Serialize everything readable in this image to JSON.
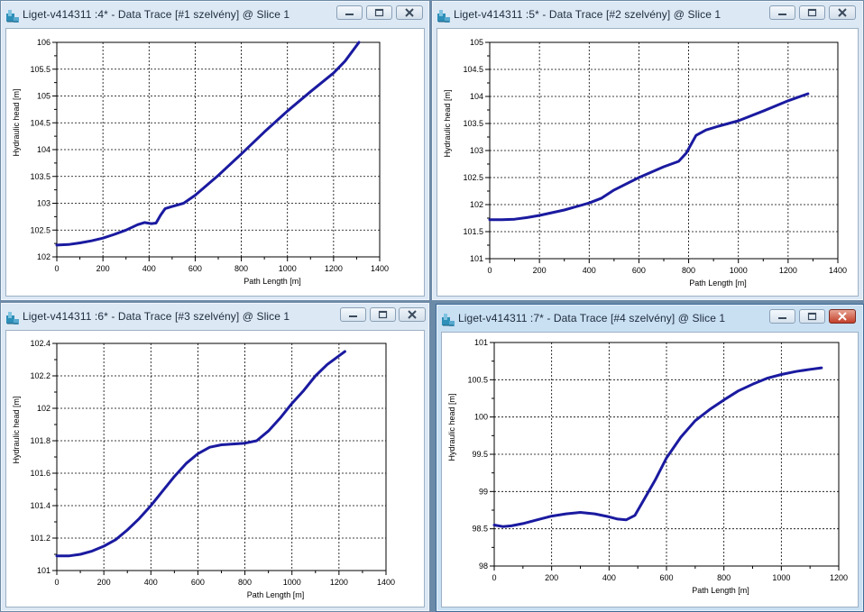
{
  "windows": [
    {
      "title": "Liget-v414311 :4* - Data Trace [#1 szelvény] @ Slice 1",
      "active": false,
      "chart_data": {
        "type": "line",
        "title": "",
        "xlabel": "Path Length [m]",
        "ylabel": "Hydraulic head [m]",
        "xlim": [
          0,
          1400
        ],
        "ylim": [
          102,
          106
        ],
        "x_ticks": [
          0,
          200,
          400,
          600,
          800,
          1000,
          1200,
          1400
        ],
        "x_tick_labels": [
          "0",
          "200",
          "400",
          "600",
          "800",
          "1000",
          "1200",
          "1400"
        ],
        "y_ticks": [
          102,
          102.5,
          103,
          103.5,
          104,
          104.5,
          105,
          105.5,
          106
        ],
        "y_tick_labels": [
          "102",
          "102.5",
          "103",
          "103.5",
          "104",
          "104.5",
          "105",
          "105.5",
          "106"
        ],
        "x_minor_per_major": 2,
        "y_minor_per_major": 2,
        "grid": true,
        "series_color": "#1a1aa0",
        "series": [
          {
            "x": [
              0,
              50,
              100,
              150,
              200,
              250,
              300,
              350,
              380,
              410,
              430,
              450,
              470,
              500,
              550,
              600,
              700,
              800,
              900,
              1000,
              1100,
              1200,
              1250,
              1310
            ],
            "y": [
              102.22,
              102.23,
              102.26,
              102.3,
              102.35,
              102.42,
              102.5,
              102.6,
              102.64,
              102.62,
              102.63,
              102.78,
              102.9,
              102.94,
              103.0,
              103.15,
              103.52,
              103.92,
              104.33,
              104.72,
              105.08,
              105.43,
              105.65,
              106.0
            ]
          }
        ]
      }
    },
    {
      "title": "Liget-v414311 :5* - Data Trace [#2 szelvény] @ Slice 1",
      "active": false,
      "chart_data": {
        "type": "line",
        "title": "",
        "xlabel": "Path Length [m]",
        "ylabel": "Hydraulic head [m]",
        "xlim": [
          0,
          1400
        ],
        "ylim": [
          101,
          105
        ],
        "x_ticks": [
          0,
          200,
          400,
          600,
          800,
          1000,
          1200,
          1400
        ],
        "x_tick_labels": [
          "0",
          "200",
          "400",
          "600",
          "800",
          "1000",
          "1200",
          "1400"
        ],
        "y_ticks": [
          101,
          101.5,
          102,
          102.5,
          103,
          103.5,
          104,
          104.5,
          105
        ],
        "y_tick_labels": [
          "101",
          "101.5",
          "102",
          "102.5",
          "103",
          "103.5",
          "104",
          "104.5",
          "105"
        ],
        "x_minor_per_major": 2,
        "y_minor_per_major": 2,
        "grid": true,
        "series_color": "#1a1aa0",
        "series": [
          {
            "x": [
              0,
              50,
              100,
              150,
              200,
              300,
              400,
              450,
              500,
              600,
              700,
              760,
              790,
              830,
              870,
              920,
              1000,
              1100,
              1200,
              1280
            ],
            "y": [
              101.72,
              101.72,
              101.73,
              101.76,
              101.8,
              101.9,
              102.03,
              102.12,
              102.27,
              102.5,
              102.7,
              102.8,
              102.95,
              103.28,
              103.38,
              103.45,
              103.55,
              103.73,
              103.92,
              104.05
            ]
          }
        ]
      }
    },
    {
      "title": "Liget-v414311 :6* - Data Trace [#3 szelvény] @ Slice 1",
      "active": false,
      "chart_data": {
        "type": "line",
        "title": "",
        "xlabel": "Path Length [m]",
        "ylabel": "Hydraulic head [m]",
        "xlim": [
          0,
          1400
        ],
        "ylim": [
          101,
          102.4
        ],
        "x_ticks": [
          0,
          200,
          400,
          600,
          800,
          1000,
          1200,
          1400
        ],
        "x_tick_labels": [
          "0",
          "200",
          "400",
          "600",
          "800",
          "1000",
          "1200",
          "1400"
        ],
        "y_ticks": [
          101,
          101.2,
          101.4,
          101.6,
          101.8,
          102,
          102.2,
          102.4
        ],
        "y_tick_labels": [
          "101",
          "101.2",
          "101.4",
          "101.6",
          "101.8",
          "102",
          "102.2",
          "102.4"
        ],
        "x_minor_per_major": 2,
        "y_minor_per_major": 2,
        "grid": true,
        "series_color": "#1a1aa0",
        "series": [
          {
            "x": [
              0,
              50,
              100,
              150,
              200,
              250,
              300,
              350,
              400,
              450,
              500,
              550,
              600,
              650,
              700,
              750,
              800,
              850,
              900,
              950,
              1000,
              1050,
              1100,
              1150,
              1225
            ],
            "y": [
              101.09,
              101.09,
              101.1,
              101.12,
              101.15,
              101.19,
              101.25,
              101.32,
              101.4,
              101.49,
              101.58,
              101.66,
              101.72,
              101.76,
              101.775,
              101.78,
              101.785,
              101.8,
              101.86,
              101.94,
              102.03,
              102.11,
              102.2,
              102.27,
              102.35
            ]
          }
        ]
      }
    },
    {
      "title": "Liget-v414311 :7* - Data Trace [#4 szelvény] @ Slice 1",
      "active": true,
      "chart_data": {
        "type": "line",
        "title": "",
        "xlabel": "Path Length [m]",
        "ylabel": "Hydraulic head [m]",
        "xlim": [
          0,
          1200
        ],
        "ylim": [
          98,
          101
        ],
        "x_ticks": [
          0,
          200,
          400,
          600,
          800,
          1000,
          1200
        ],
        "x_tick_labels": [
          "0",
          "200",
          "400",
          "600",
          "800",
          "1000",
          "1200"
        ],
        "y_ticks": [
          98,
          98.5,
          99,
          99.5,
          100,
          100.5,
          101
        ],
        "y_tick_labels": [
          "98",
          "98.5",
          "99",
          "99.5",
          "100",
          "100.5",
          "101"
        ],
        "x_minor_per_major": 2,
        "y_minor_per_major": 2,
        "grid": true,
        "series_color": "#1a1aa0",
        "series": [
          {
            "x": [
              0,
              30,
              60,
              100,
              150,
              200,
              250,
              300,
              350,
              400,
              430,
              460,
              490,
              520,
              560,
              600,
              650,
              700,
              750,
              800,
              850,
              900,
              950,
              1000,
              1050,
              1100,
              1140
            ],
            "y": [
              98.55,
              98.53,
              98.54,
              98.57,
              98.62,
              98.67,
              98.7,
              98.72,
              98.7,
              98.66,
              98.63,
              98.62,
              98.68,
              98.88,
              99.15,
              99.45,
              99.73,
              99.95,
              100.1,
              100.23,
              100.35,
              100.44,
              100.52,
              100.57,
              100.61,
              100.64,
              100.66
            ]
          }
        ]
      }
    }
  ]
}
